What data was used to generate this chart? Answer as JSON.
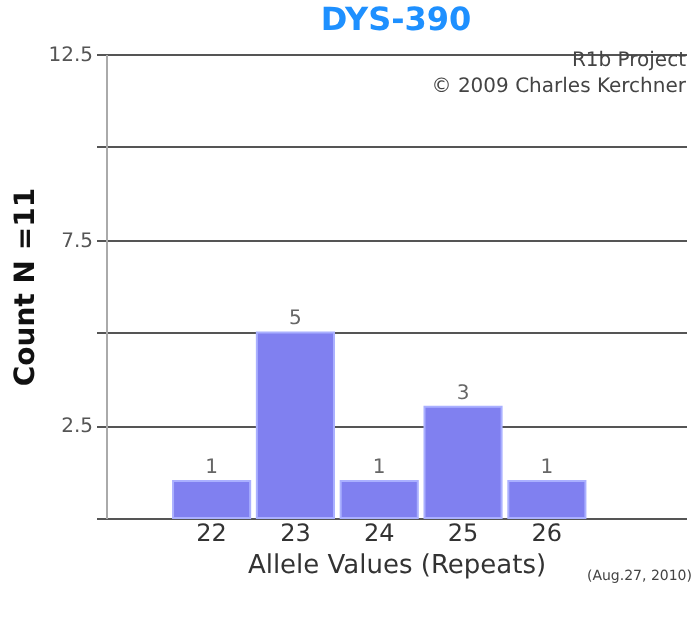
{
  "chart_data": {
    "type": "bar",
    "title": "DYS-390",
    "xlabel": "Allele Values (Repeats)",
    "ylabel": "Count N =11",
    "categories": [
      "22",
      "23",
      "24",
      "25",
      "26"
    ],
    "values": [
      1,
      5,
      1,
      3,
      1
    ],
    "color": "#8080f0",
    "ylim": [
      0,
      12.5
    ],
    "yticks": [
      {
        "value": 0,
        "label": null
      },
      2.5,
      {
        "value": 5,
        "label": null
      },
      7.5,
      {
        "value": 10,
        "label": null
      },
      12.5
    ],
    "grid": "y",
    "data_labels": true,
    "annotations": [
      "R1b Project",
      "© 2009 Charles Kerchner",
      "(Aug.27, 2010)"
    ]
  }
}
